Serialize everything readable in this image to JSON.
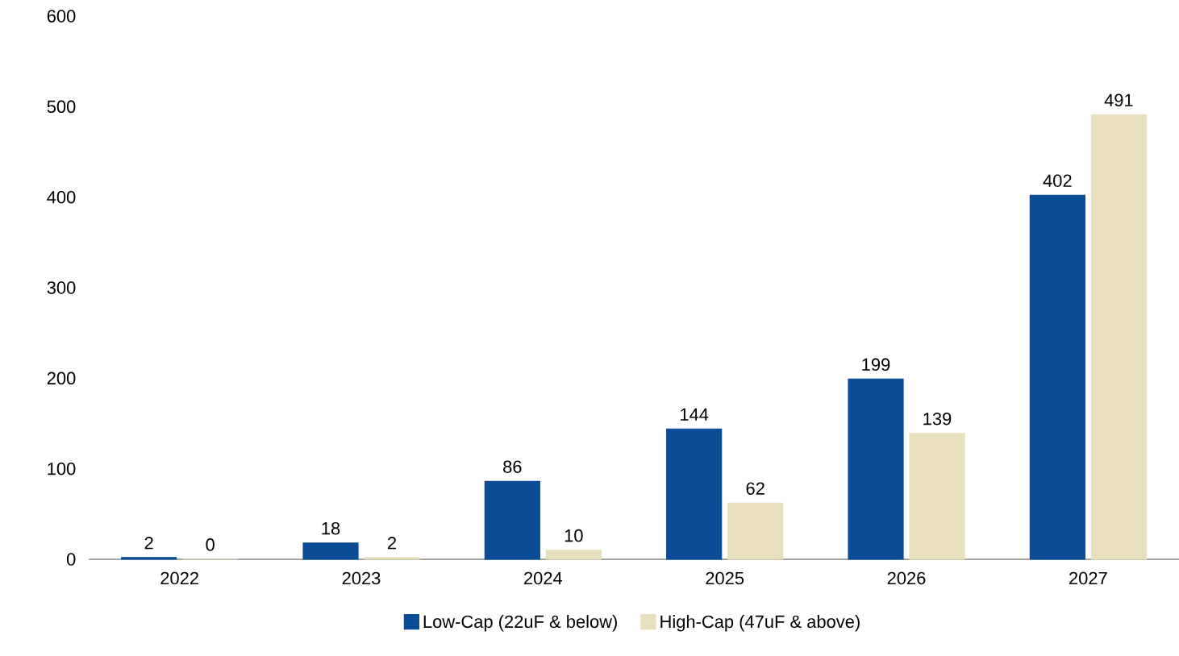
{
  "chart_data": {
    "type": "bar",
    "categories": [
      "2022",
      "2023",
      "2024",
      "2025",
      "2026",
      "2027"
    ],
    "series": [
      {
        "name": "Low-Cap (22uF & below)",
        "color": "#0b4c97",
        "values": [
          2,
          18,
          86,
          144,
          199,
          402
        ]
      },
      {
        "name": "High-Cap (47uF & above)",
        "color": "#e8dfbf",
        "values": [
          0,
          2,
          10,
          62,
          139,
          491
        ]
      }
    ],
    "ylim": [
      0,
      600
    ],
    "yticks": [
      0,
      100,
      200,
      300,
      400,
      500,
      600
    ],
    "data_labels": true,
    "legend": "bottom",
    "grid": false
  }
}
